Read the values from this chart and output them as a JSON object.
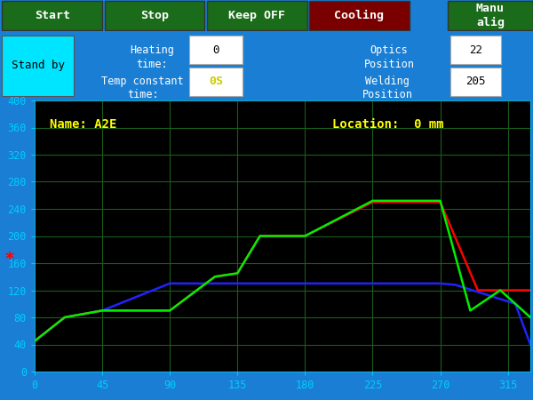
{
  "bg_color": "#000000",
  "ui_bg": "#1a7fd4",
  "plot_bg": "#000000",
  "grid_color": "#1a5c1a",
  "title_bar_bg": "#1a6b1a",
  "cooling_bg": "#7a0000",
  "standby_bg": "#00e5ff",
  "tick_color": "#00ccff",
  "annotation_color": "#ffff00",
  "star_color": "#ff0000",
  "xlim": [
    0,
    330
  ],
  "ylim": [
    0,
    400
  ],
  "xticks": [
    0,
    45,
    90,
    135,
    180,
    225,
    270,
    315
  ],
  "yticks": [
    0,
    40,
    80,
    120,
    160,
    200,
    240,
    280,
    320,
    360,
    400
  ],
  "name_label": "Name: A2E",
  "location_label": "Location:  0 mm",
  "buttons": [
    "Start",
    "Stop",
    "Keep OFF",
    "Cooling",
    "Manu\nalig"
  ],
  "button_colors": [
    "#1a6b1a",
    "#1a6b1a",
    "#1a6b1a",
    "#7a0000",
    "#1a6b1a"
  ],
  "heating_time": "0",
  "temp_constant_time": "0S",
  "optics_position": "22",
  "welding_position": "205",
  "red_x": [
    0,
    20,
    45,
    90,
    90,
    120,
    135,
    150,
    180,
    225,
    255,
    270,
    270,
    295,
    315,
    330
  ],
  "red_y": [
    45,
    80,
    90,
    90,
    90,
    140,
    145,
    200,
    200,
    250,
    250,
    250,
    250,
    120,
    120,
    120
  ],
  "green_x": [
    0,
    20,
    45,
    90,
    90,
    120,
    135,
    150,
    180,
    225,
    255,
    270,
    270,
    290,
    310,
    330
  ],
  "green_y": [
    45,
    80,
    90,
    90,
    90,
    140,
    145,
    200,
    200,
    252,
    252,
    252,
    252,
    90,
    120,
    80
  ],
  "blue_x": [
    0,
    20,
    45,
    90,
    90,
    135,
    270,
    280,
    320,
    330
  ],
  "blue_y": [
    45,
    80,
    90,
    130,
    130,
    130,
    130,
    128,
    100,
    40
  ],
  "line_width": 1.8
}
